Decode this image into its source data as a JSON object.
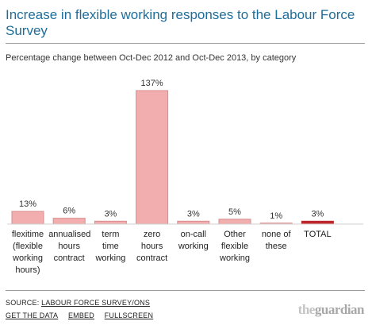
{
  "title": "Increase in flexible working responses to the Labour Force Survey",
  "subtitle": "Percentage change between Oct-Dec 2012 and Oct-Dec 2013, by category",
  "source_prefix": "SOURCE: ",
  "source_link": "LABOUR FORCE SURVEY/ONS",
  "links": [
    "GET THE DATA",
    "EMBED",
    "FULLSCREEN"
  ],
  "logo": {
    "prefix": "the",
    "name": "guardian"
  },
  "colors": {
    "bar": "#f2aeae",
    "bar_stroke": "#d98c8c",
    "total": "#c0272d",
    "title": "#1f6d9a"
  },
  "chart_data": {
    "type": "bar",
    "title": "Increase in flexible working responses to the Labour Force Survey",
    "categories": [
      "flexitime (flexible working hours)",
      "annualised hours contract",
      "term time working",
      "zero hours contract",
      "on-call working",
      "Other flexible working",
      "none of these",
      "TOTAL"
    ],
    "category_labels": [
      "flexitime\n(flexible\nworking\nhours)",
      "annualised\nhours\ncontract",
      "term\ntime\nworking",
      "zero\nhours\ncontract",
      "on-call\nworking",
      "Other\nflexible\nworking",
      "none of\nthese",
      "TOTAL"
    ],
    "values": [
      13,
      6,
      3,
      137,
      3,
      5,
      1,
      3
    ],
    "value_labels": [
      "13%",
      "6%",
      "3%",
      "137%",
      "3%",
      "5%",
      "1%",
      "3%"
    ],
    "highlight_index": 7,
    "ylim": [
      0,
      137
    ],
    "grid": false
  }
}
